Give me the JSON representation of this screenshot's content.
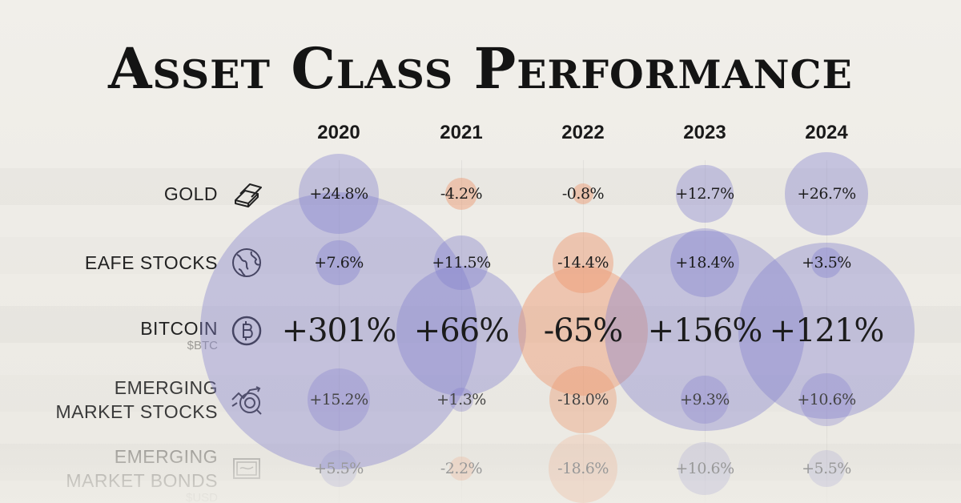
{
  "chart_data": {
    "type": "bubble-grid",
    "title": "Asset Class Performance",
    "years": [
      "2020",
      "2021",
      "2022",
      "2023",
      "2024"
    ],
    "unit": "%",
    "rows": [
      {
        "label": "GOLD",
        "icon": "gold-bars-icon",
        "values": [
          24.8,
          -4.2,
          -0.8,
          12.7,
          26.7
        ],
        "labels": [
          "+24.8%",
          "-4.2%",
          "-0.8%",
          "+12.7%",
          "+26.7%"
        ]
      },
      {
        "label": "EAFE STOCKS",
        "icon": "globe-icon",
        "values": [
          7.6,
          11.5,
          -14.4,
          18.4,
          3.5
        ],
        "labels": [
          "+7.6%",
          "+11.5%",
          "-14.4%",
          "+18.4%",
          "+3.5%"
        ]
      },
      {
        "label": "BITCOIN",
        "sublabel": "$BTC",
        "icon": "bitcoin-icon",
        "values": [
          301,
          66,
          -65,
          156,
          121
        ],
        "labels": [
          "+301%",
          "+66%",
          "-65%",
          "+156%",
          "+121%"
        ]
      },
      {
        "label": "EMERGING\nMARKET STOCKS",
        "icon": "market-target-icon",
        "values": [
          15.2,
          1.3,
          -18.0,
          9.3,
          10.6
        ],
        "labels": [
          "+15.2%",
          "+1.3%",
          "-18.0%",
          "+9.3%",
          "+10.6%"
        ]
      },
      {
        "label": "EMERGING\nMARKET BONDS",
        "sublabel": "$USD",
        "icon": "bond-certificate-icon",
        "values": [
          5.5,
          -2.2,
          -18.6,
          10.6,
          5.5
        ],
        "labels": [
          "+5.5%",
          "-2.2%",
          "-18.6%",
          "+10.6%",
          "+5.5%"
        ]
      }
    ],
    "colors": {
      "positive": "#827dcd",
      "negative": "#ee966e"
    }
  }
}
